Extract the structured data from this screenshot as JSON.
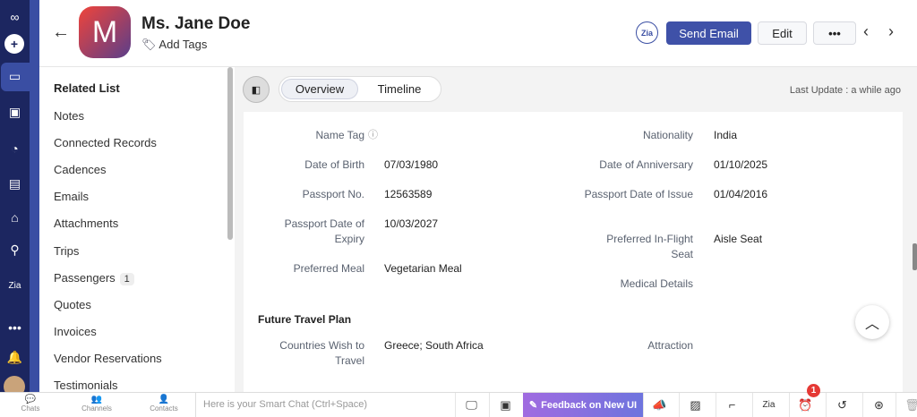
{
  "header": {
    "avatar_letter": "M",
    "name": "Ms. Jane Doe",
    "add_tags": "Add Tags",
    "zia": "Zia",
    "send_email": "Send Email",
    "edit": "Edit",
    "more": "•••"
  },
  "related": {
    "title": "Related List",
    "items": [
      {
        "label": "Notes"
      },
      {
        "label": "Connected Records"
      },
      {
        "label": "Cadences"
      },
      {
        "label": "Emails"
      },
      {
        "label": "Attachments"
      },
      {
        "label": "Trips"
      },
      {
        "label": "Passengers",
        "badge": "1"
      },
      {
        "label": "Quotes"
      },
      {
        "label": "Invoices"
      },
      {
        "label": "Vendor Reservations"
      },
      {
        "label": "Testimonials"
      }
    ]
  },
  "tabs": {
    "overview": "Overview",
    "timeline": "Timeline"
  },
  "last_update": "Last Update : a while ago",
  "fields_left": [
    {
      "label": "Name Tag",
      "value": ""
    },
    {
      "label": "Date of Birth",
      "value": "07/03/1980"
    },
    {
      "label": "Passport No.",
      "value": "12563589"
    },
    {
      "label": "Passport Date of Expiry",
      "value": "10/03/2027"
    },
    {
      "label": "Preferred Meal",
      "value": "Vegetarian Meal"
    }
  ],
  "fields_right": [
    {
      "label": "Nationality",
      "value": "India"
    },
    {
      "label": "Date of Anniversary",
      "value": "01/10/2025"
    },
    {
      "label": "Passport Date of Issue",
      "value": "01/04/2016"
    },
    {
      "label": "Preferred In-Flight Seat",
      "value": "Aisle Seat"
    },
    {
      "label": "Medical Details",
      "value": ""
    }
  ],
  "section_future": "Future Travel Plan",
  "future_left": {
    "label": "Countries Wish to Travel",
    "value": "Greece; South Africa"
  },
  "future_right": {
    "label": "Attraction",
    "value": ""
  },
  "bottom": {
    "chats": "Chats",
    "channels": "Channels",
    "contacts": "Contacts",
    "smart_chat_placeholder": "Here is your Smart Chat (Ctrl+Space)",
    "feedback": "Feedback on New UI",
    "notification_count": "1"
  },
  "colors": {
    "rail": "#1c2660",
    "accent": "#3f51a8"
  }
}
